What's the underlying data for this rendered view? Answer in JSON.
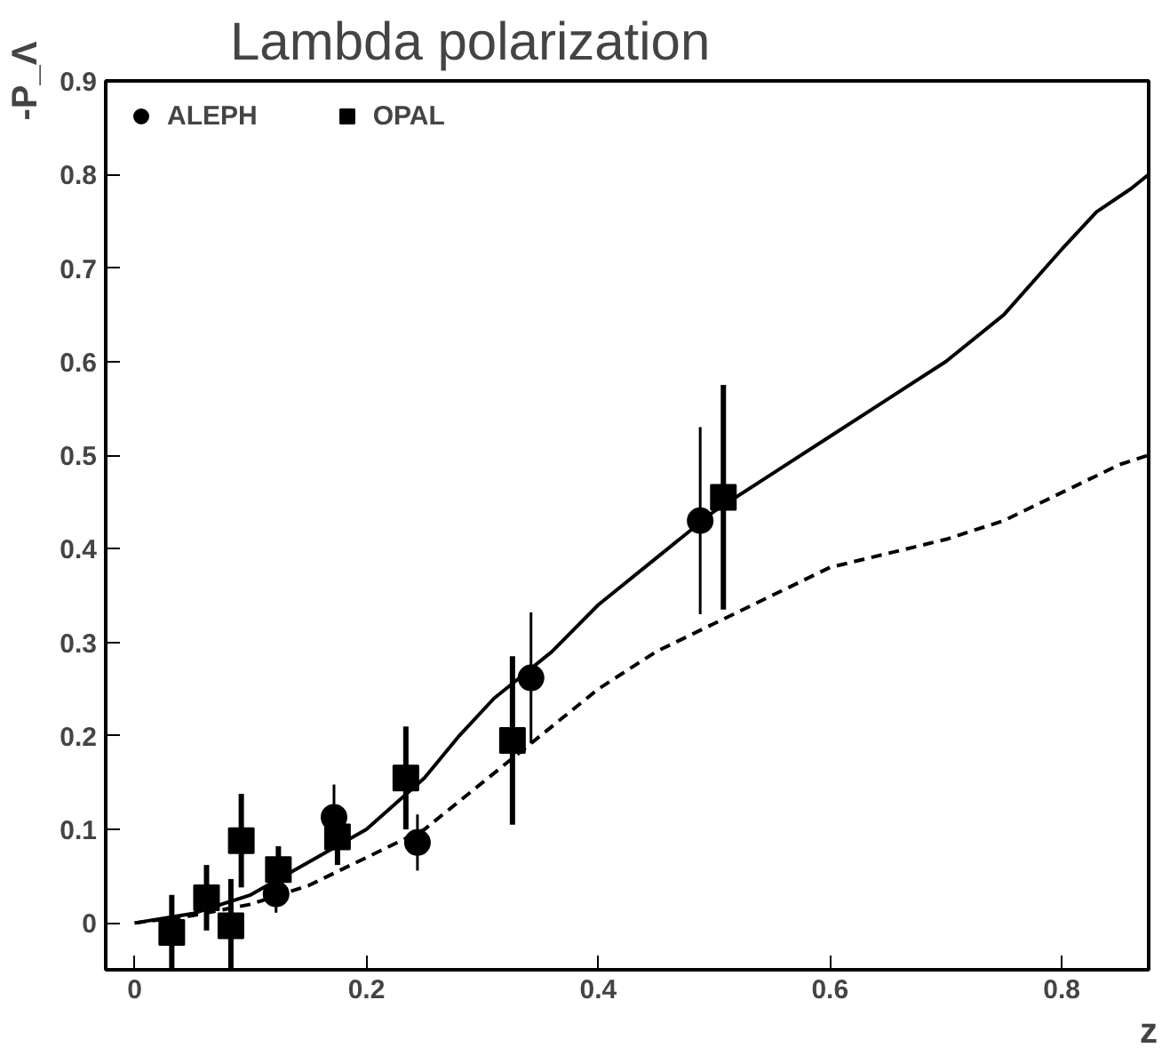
{
  "chart_data": {
    "type": "scatter",
    "title": "Lambda polarization",
    "xlabel": "z",
    "ylabel": "-P_Λ",
    "xlim": [
      -0.025,
      0.875
    ],
    "ylim": [
      -0.05,
      0.9
    ],
    "xticks": [
      0,
      0.2,
      0.4,
      0.6,
      0.8
    ],
    "yticks": [
      0,
      0.1,
      0.2,
      0.3,
      0.4,
      0.5,
      0.6,
      0.7,
      0.8,
      0.9
    ],
    "grid": false,
    "legend": "top left",
    "series": [
      {
        "name": "ALEPH",
        "marker": "circle",
        "color": "#000000",
        "x": [
          0.122,
          0.172,
          0.244,
          0.342,
          0.488
        ],
        "values": [
          0.031,
          0.113,
          0.086,
          0.262,
          0.43
        ],
        "errors": [
          0.02,
          0.035,
          0.03,
          0.07,
          0.1
        ]
      },
      {
        "name": "OPAL",
        "marker": "square",
        "color": "#000000",
        "x": [
          0.032,
          0.062,
          0.083,
          0.092,
          0.124,
          0.175,
          0.234,
          0.326,
          0.508
        ],
        "values": [
          -0.01,
          0.027,
          -0.003,
          0.088,
          0.057,
          0.092,
          0.155,
          0.195,
          0.455
        ],
        "errors": [
          0.04,
          0.035,
          0.05,
          0.05,
          0.025,
          0.03,
          0.055,
          0.09,
          0.12
        ]
      },
      {
        "type": "line",
        "line_style": "solid",
        "color": "#000000",
        "x": [
          0,
          0.05,
          0.1,
          0.15,
          0.2,
          0.25,
          0.28,
          0.31,
          0.33,
          0.36,
          0.4,
          0.45,
          0.5,
          0.55,
          0.6,
          0.65,
          0.7,
          0.75,
          0.8,
          0.83,
          0.86,
          0.875
        ],
        "values": [
          0,
          0.01,
          0.03,
          0.065,
          0.1,
          0.155,
          0.2,
          0.24,
          0.26,
          0.29,
          0.34,
          0.39,
          0.44,
          0.48,
          0.52,
          0.56,
          0.6,
          0.65,
          0.72,
          0.76,
          0.785,
          0.8
        ]
      },
      {
        "type": "line",
        "line_style": "dashed",
        "color": "#000000",
        "x": [
          0,
          0.05,
          0.1,
          0.15,
          0.2,
          0.25,
          0.3,
          0.35,
          0.4,
          0.45,
          0.5,
          0.55,
          0.6,
          0.65,
          0.7,
          0.75,
          0.8,
          0.85,
          0.875
        ],
        "values": [
          0,
          0.008,
          0.02,
          0.04,
          0.07,
          0.1,
          0.15,
          0.2,
          0.25,
          0.29,
          0.32,
          0.35,
          0.38,
          0.395,
          0.41,
          0.43,
          0.46,
          0.49,
          0.5
        ]
      }
    ]
  }
}
